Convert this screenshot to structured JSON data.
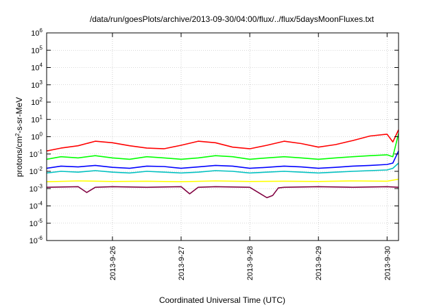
{
  "chart_data": {
    "type": "line",
    "title": "/data/run/goesPlots/archive/2013-09-30/04:00/flux/../flux/5daysMoonFluxes.txt",
    "xlabel": "Coordinated Universal Time (UTC)",
    "ylabel_parts": {
      "pre": "protons/cm",
      "sup": "2",
      "post": "-s-sr-MeV"
    },
    "y_scale": "log",
    "ylim": [
      1e-06,
      1000000.0
    ],
    "y_ticks": [
      {
        "value": 1e-06,
        "base": "10",
        "exp": "-6"
      },
      {
        "value": 1e-05,
        "base": "10",
        "exp": "-5"
      },
      {
        "value": 0.0001,
        "base": "10",
        "exp": "-4"
      },
      {
        "value": 0.001,
        "base": "10",
        "exp": "-3"
      },
      {
        "value": 0.01,
        "base": "10",
        "exp": "-2"
      },
      {
        "value": 0.1,
        "base": "10",
        "exp": "-1"
      },
      {
        "value": 1.0,
        "base": "10",
        "exp": "0"
      },
      {
        "value": 10.0,
        "base": "10",
        "exp": "1"
      },
      {
        "value": 100.0,
        "base": "10",
        "exp": "2"
      },
      {
        "value": 1000.0,
        "base": "10",
        "exp": "3"
      },
      {
        "value": 10000.0,
        "base": "10",
        "exp": "4"
      },
      {
        "value": 100000.0,
        "base": "10",
        "exp": "5"
      },
      {
        "value": 1000000.0,
        "base": "10",
        "exp": "6"
      }
    ],
    "xlim": [
      "2013-09-25T01:00",
      "2013-09-30T04:00"
    ],
    "x_ticks": [
      {
        "value": "2013-09-26T00:00",
        "label": "2013-9-26"
      },
      {
        "value": "2013-09-27T00:00",
        "label": "2013-9-27"
      },
      {
        "value": "2013-09-28T00:00",
        "label": "2013-9-28"
      },
      {
        "value": "2013-09-29T00:00",
        "label": "2013-9-29"
      },
      {
        "value": "2013-09-30T00:00",
        "label": "2013-9-30"
      }
    ],
    "grid": true,
    "legend": "none",
    "series": [
      {
        "color": "#ff0000",
        "x": [
          "2013-09-25T01:00",
          "2013-09-25T06:00",
          "2013-09-25T12:00",
          "2013-09-25T18:00",
          "2013-09-26T00:00",
          "2013-09-26T06:00",
          "2013-09-26T12:00",
          "2013-09-26T18:00",
          "2013-09-27T00:00",
          "2013-09-27T06:00",
          "2013-09-27T12:00",
          "2013-09-27T18:00",
          "2013-09-28T00:00",
          "2013-09-28T06:00",
          "2013-09-28T12:00",
          "2013-09-28T18:00",
          "2013-09-29T00:00",
          "2013-09-29T06:00",
          "2013-09-29T12:00",
          "2013-09-29T18:00",
          "2013-09-30T00:00",
          "2013-09-30T02:00",
          "2013-09-30T04:00"
        ],
        "values": [
          0.15,
          0.22,
          0.3,
          0.55,
          0.45,
          0.3,
          0.22,
          0.2,
          0.32,
          0.55,
          0.45,
          0.25,
          0.2,
          0.32,
          0.55,
          0.4,
          0.25,
          0.35,
          0.6,
          1.1,
          1.4,
          0.5,
          2.5
        ]
      },
      {
        "color": "#00ff00",
        "x": [
          "2013-09-25T01:00",
          "2013-09-25T06:00",
          "2013-09-25T12:00",
          "2013-09-25T18:00",
          "2013-09-26T00:00",
          "2013-09-26T06:00",
          "2013-09-26T12:00",
          "2013-09-26T18:00",
          "2013-09-27T00:00",
          "2013-09-27T06:00",
          "2013-09-27T12:00",
          "2013-09-27T18:00",
          "2013-09-28T00:00",
          "2013-09-28T06:00",
          "2013-09-28T12:00",
          "2013-09-28T18:00",
          "2013-09-29T00:00",
          "2013-09-29T06:00",
          "2013-09-29T12:00",
          "2013-09-29T18:00",
          "2013-09-30T00:00",
          "2013-09-30T02:00",
          "2013-09-30T04:00"
        ],
        "values": [
          0.05,
          0.07,
          0.06,
          0.08,
          0.06,
          0.05,
          0.07,
          0.06,
          0.05,
          0.06,
          0.08,
          0.07,
          0.05,
          0.06,
          0.07,
          0.06,
          0.05,
          0.06,
          0.07,
          0.08,
          0.09,
          0.07,
          1.5
        ]
      },
      {
        "color": "#0000ff",
        "x": [
          "2013-09-25T01:00",
          "2013-09-25T06:00",
          "2013-09-25T12:00",
          "2013-09-25T18:00",
          "2013-09-26T00:00",
          "2013-09-26T06:00",
          "2013-09-26T12:00",
          "2013-09-26T18:00",
          "2013-09-27T00:00",
          "2013-09-27T06:00",
          "2013-09-27T12:00",
          "2013-09-27T18:00",
          "2013-09-28T00:00",
          "2013-09-28T06:00",
          "2013-09-28T12:00",
          "2013-09-28T18:00",
          "2013-09-29T00:00",
          "2013-09-29T06:00",
          "2013-09-29T12:00",
          "2013-09-29T18:00",
          "2013-09-30T00:00",
          "2013-09-30T02:00",
          "2013-09-30T04:00"
        ],
        "values": [
          0.015,
          0.02,
          0.018,
          0.022,
          0.017,
          0.015,
          0.02,
          0.019,
          0.015,
          0.018,
          0.022,
          0.02,
          0.015,
          0.017,
          0.02,
          0.018,
          0.015,
          0.017,
          0.02,
          0.022,
          0.025,
          0.03,
          0.15
        ]
      },
      {
        "color": "#00c0c0",
        "x": [
          "2013-09-25T01:00",
          "2013-09-25T06:00",
          "2013-09-25T12:00",
          "2013-09-25T18:00",
          "2013-09-26T00:00",
          "2013-09-26T06:00",
          "2013-09-26T12:00",
          "2013-09-26T18:00",
          "2013-09-27T00:00",
          "2013-09-27T06:00",
          "2013-09-27T12:00",
          "2013-09-27T18:00",
          "2013-09-28T00:00",
          "2013-09-28T06:00",
          "2013-09-28T12:00",
          "2013-09-28T18:00",
          "2013-09-29T00:00",
          "2013-09-29T06:00",
          "2013-09-29T12:00",
          "2013-09-29T18:00",
          "2013-09-30T00:00",
          "2013-09-30T02:00",
          "2013-09-30T04:00"
        ],
        "values": [
          0.008,
          0.01,
          0.009,
          0.011,
          0.009,
          0.008,
          0.01,
          0.009,
          0.008,
          0.009,
          0.011,
          0.01,
          0.008,
          0.009,
          0.01,
          0.009,
          0.008,
          0.009,
          0.01,
          0.011,
          0.012,
          0.015,
          0.03
        ]
      },
      {
        "color": "#ffff00",
        "x": [
          "2013-09-25T01:00",
          "2013-09-25T12:00",
          "2013-09-26T00:00",
          "2013-09-26T12:00",
          "2013-09-27T00:00",
          "2013-09-27T12:00",
          "2013-09-28T00:00",
          "2013-09-28T12:00",
          "2013-09-29T00:00",
          "2013-09-29T12:00",
          "2013-09-30T00:00",
          "2013-09-30T04:00"
        ],
        "values": [
          0.0025,
          0.0028,
          0.0026,
          0.0027,
          0.0025,
          0.0028,
          0.0026,
          0.0027,
          0.0026,
          0.0028,
          0.0027,
          0.0035
        ]
      },
      {
        "color": "#800040",
        "x": [
          "2013-09-25T01:00",
          "2013-09-25T12:00",
          "2013-09-25T15:00",
          "2013-09-25T18:00",
          "2013-09-26T00:00",
          "2013-09-26T12:00",
          "2013-09-27T00:00",
          "2013-09-27T03:00",
          "2013-09-27T06:00",
          "2013-09-27T12:00",
          "2013-09-28T00:00",
          "2013-09-28T06:00",
          "2013-09-28T08:00",
          "2013-09-28T10:00",
          "2013-09-28T12:00",
          "2013-09-29T00:00",
          "2013-09-29T12:00",
          "2013-09-30T00:00",
          "2013-09-30T04:00"
        ],
        "values": [
          0.0012,
          0.0013,
          0.0006,
          0.0012,
          0.0013,
          0.0012,
          0.0013,
          0.0005,
          0.0012,
          0.0013,
          0.0012,
          0.0003,
          0.0004,
          0.0011,
          0.0012,
          0.0013,
          0.0012,
          0.0013,
          0.0012
        ]
      }
    ]
  }
}
